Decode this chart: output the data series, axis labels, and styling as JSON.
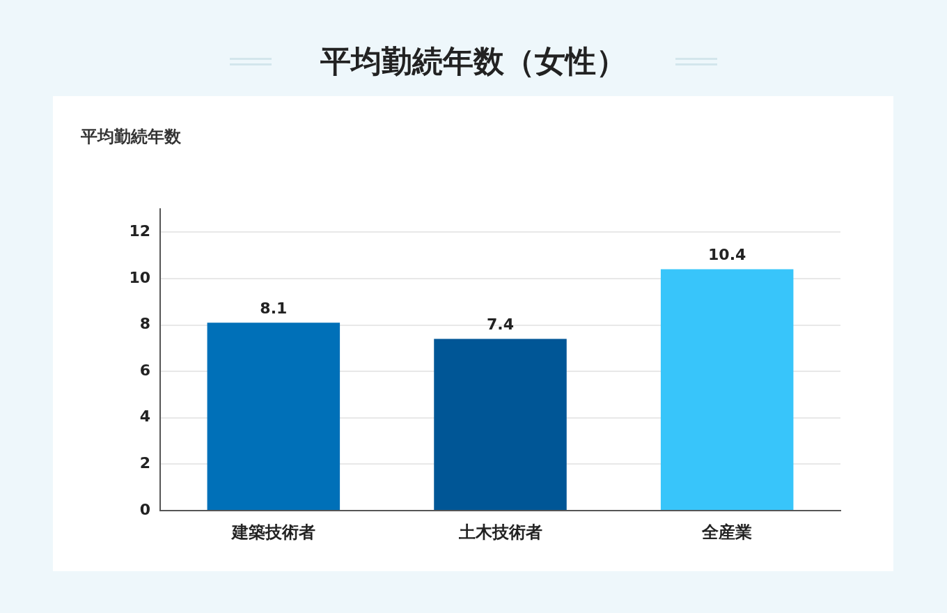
{
  "chart_data": {
    "type": "bar",
    "title": "平均勤続年数（女性）",
    "ylabel": "平均勤続年数",
    "categories": [
      "建築技術者",
      "土木技術者",
      "全産業"
    ],
    "values": [
      8.1,
      7.4,
      10.4
    ],
    "colors": [
      "#0070b8",
      "#005696",
      "#38c5fa"
    ],
    "ylim": [
      0,
      13
    ],
    "yticks": [
      0,
      2,
      4,
      6,
      8,
      10,
      12
    ],
    "grid": "y",
    "data_labels": true,
    "legend": false
  }
}
